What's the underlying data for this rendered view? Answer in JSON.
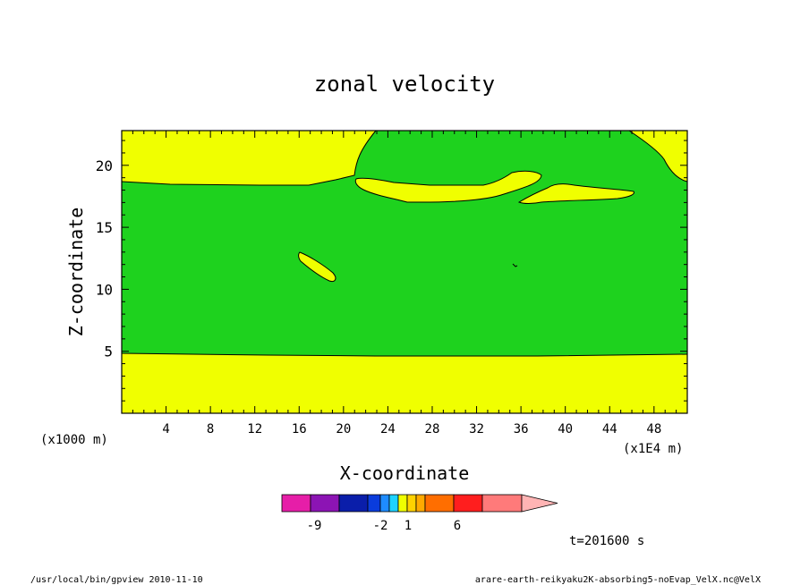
{
  "chart_data": {
    "type": "heatmap",
    "title": "zonal velocity",
    "xlabel": "X-coordinate",
    "ylabel": "Z-coordinate",
    "x_scale_note": "(x1E4 m)",
    "y_scale_note": "(x1000 m)",
    "xlim": [
      0,
      51
    ],
    "ylim": [
      0,
      22.8
    ],
    "x_ticks": [
      "4",
      "8",
      "12",
      "16",
      "20",
      "24",
      "28",
      "32",
      "36",
      "40",
      "44",
      "48"
    ],
    "y_ticks": [
      "5",
      "10",
      "15",
      "20"
    ],
    "colorbar": {
      "tick_labels": [
        "-9",
        "-2",
        "1",
        "6"
      ],
      "colors": [
        "#e61ea8",
        "#8c14b4",
        "#0a1eaa",
        "#0a3cdc",
        "#1e8cff",
        "#1ed2ff",
        "#f0ff00",
        "#ffd200",
        "#ffaa00",
        "#ff6e00",
        "#ff1e1e",
        "#ff7a7a",
        "#ffb4b4"
      ]
    },
    "fill_colors": {
      "green": "#1ed21e",
      "yellow": "#f0ff00"
    },
    "time_label": "t=201600 s",
    "footer_left": "/usr/local/bin/gpview  2010-11-10",
    "footer_right": "arare-earth-reikyaku2K-absorbing5-noEvap_VelX.nc@VelX"
  }
}
